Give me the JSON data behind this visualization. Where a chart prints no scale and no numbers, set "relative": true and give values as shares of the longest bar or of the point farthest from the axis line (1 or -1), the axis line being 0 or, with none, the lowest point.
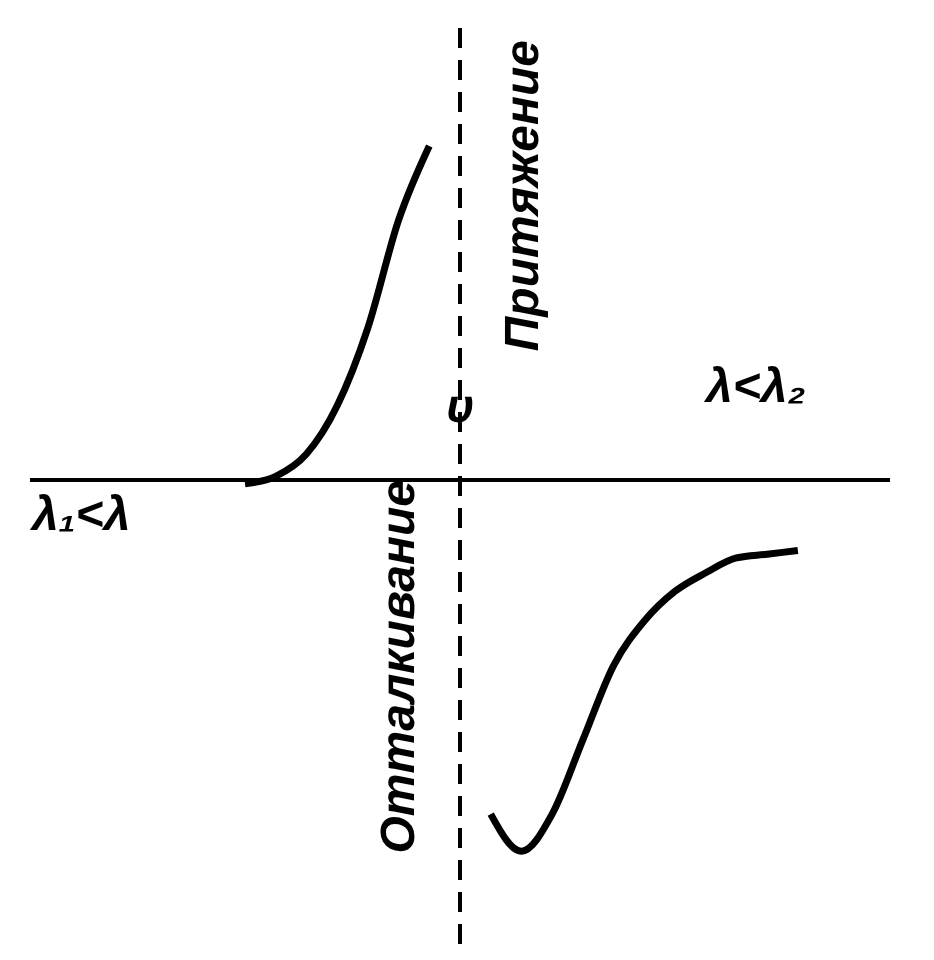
{
  "chart_data": {
    "type": "line",
    "relative": true,
    "marker": "none",
    "line_style": "solid",
    "categories": [
      null,
      null,
      null,
      null,
      null,
      null,
      null,
      null,
      null,
      null,
      null,
      null,
      null,
      null,
      null,
      null,
      null,
      null,
      null,
      null,
      null,
      null,
      null,
      null,
      null,
      null,
      null,
      null,
      null
    ],
    "series": [
      {
        "color": "#000000",
        "values": [
          null,
          null,
          null,
          null,
          null,
          null,
          null,
          -0.01,
          0.01,
          0.07,
          0.2,
          0.41,
          0.7,
          0.9,
          null,
          null,
          null,
          null,
          null,
          null,
          null,
          null,
          null,
          null,
          null,
          null,
          null,
          null,
          null
        ]
      },
      {
        "color": "#000000",
        "values": [
          null,
          null,
          null,
          null,
          null,
          null,
          null,
          null,
          null,
          null,
          null,
          null,
          null,
          null,
          null,
          -0.9,
          -1,
          -0.9,
          -0.7,
          -0.5,
          -0.38,
          -0.3,
          -0.25,
          -0.21,
          -0.2,
          -0.19,
          null,
          null,
          null
        ]
      }
    ],
    "annotations": [
      "υ",
      "λ₁<λ",
      "λ<λ₂",
      "Притяжение",
      "Отталкивание"
    ]
  }
}
